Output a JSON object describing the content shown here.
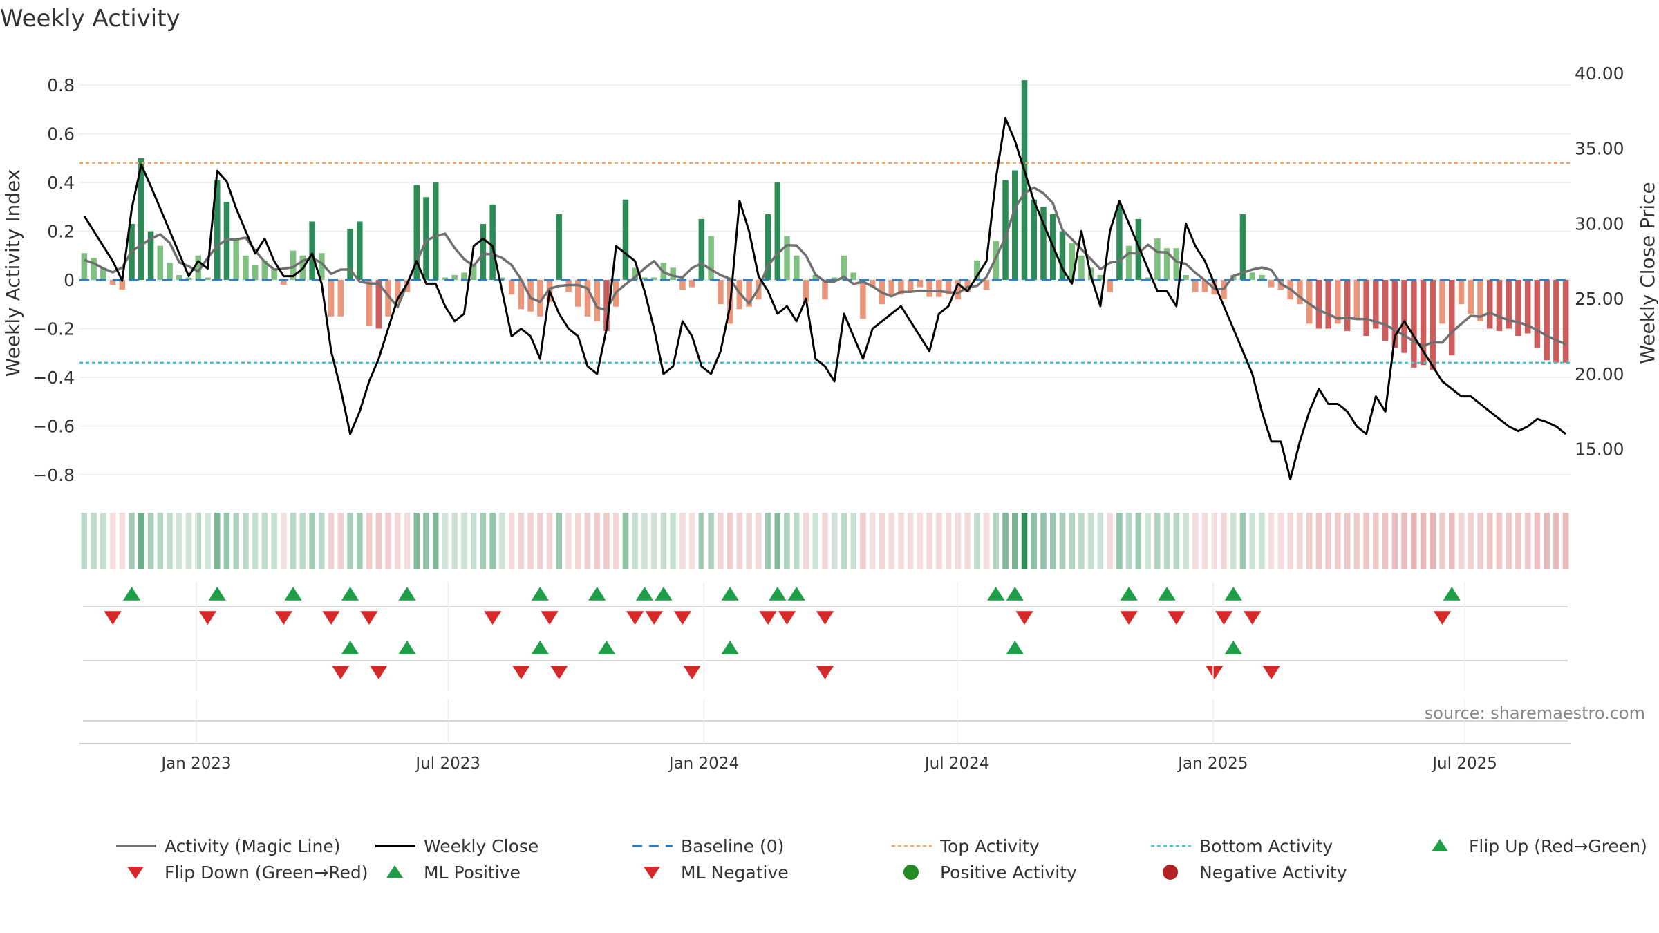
{
  "chart_data": {
    "type": "bar",
    "title": "Weekly Activity",
    "ylabel": "Weekly Activity Index",
    "y2label": "Weekly Close Price",
    "source": "source: sharemaestro.com",
    "ylim": [
      -0.88,
      0.88
    ],
    "y2lim": [
      12.0,
      40.5
    ],
    "yticks": [
      0.8,
      0.6,
      0.4,
      0.2,
      0,
      -0.2,
      -0.4,
      -0.6,
      -0.8
    ],
    "ytick_labels": [
      "0.8",
      "0.6",
      "0.4",
      "0.2",
      "0",
      "−0.2",
      "−0.4",
      "−0.6",
      "−0.8"
    ],
    "y2ticks": [
      40,
      35,
      30,
      25,
      20,
      15
    ],
    "y2tick_labels": [
      "40.00",
      "35.00",
      "30.00",
      "25.00",
      "20.00",
      "15.00"
    ],
    "top_activity": 0.48,
    "bottom_activity": -0.34,
    "x_start": "2022-10-09",
    "x_end": "2025-09-15",
    "week_count": 157,
    "xticks": [
      {
        "label": "Jan 2023",
        "date": "2023-01-01"
      },
      {
        "label": "Jul 2023",
        "date": "2023-07-01"
      },
      {
        "label": "Jan 2024",
        "date": "2024-01-01"
      },
      {
        "label": "Jul 2024",
        "date": "2024-07-01"
      },
      {
        "label": "Jan 2025",
        "date": "2025-01-01"
      },
      {
        "label": "Jul 2025",
        "date": "2025-07-01"
      }
    ],
    "bar_anchors": [
      [
        0,
        0.11
      ],
      [
        1,
        0.09
      ],
      [
        2,
        0.05
      ],
      [
        3,
        -0.02
      ],
      [
        4,
        -0.04
      ],
      [
        5,
        0.23
      ],
      [
        6,
        0.5
      ],
      [
        7,
        0.2
      ],
      [
        8,
        0.14
      ],
      [
        9,
        0.07
      ],
      [
        10,
        0.02
      ],
      [
        11,
        0.01
      ],
      [
        12,
        0.1
      ],
      [
        13,
        0.01
      ],
      [
        14,
        0.41
      ],
      [
        15,
        0.32
      ],
      [
        16,
        0.17
      ],
      [
        17,
        0.1
      ],
      [
        18,
        0.06
      ],
      [
        19,
        0.08
      ],
      [
        20,
        0.04
      ],
      [
        21,
        -0.02
      ],
      [
        22,
        0.12
      ],
      [
        23,
        0.1
      ],
      [
        24,
        0.24
      ],
      [
        25,
        0.11
      ],
      [
        26,
        -0.15
      ],
      [
        27,
        -0.15
      ],
      [
        28,
        0.21
      ],
      [
        29,
        0.24
      ],
      [
        30,
        -0.19
      ],
      [
        31,
        -0.2
      ],
      [
        32,
        -0.15
      ],
      [
        33,
        -0.09
      ],
      [
        34,
        -0.05
      ],
      [
        35,
        0.39
      ],
      [
        36,
        0.34
      ],
      [
        37,
        0.4
      ],
      [
        38,
        0.01
      ],
      [
        39,
        0.02
      ],
      [
        40,
        0.03
      ],
      [
        41,
        0.06
      ],
      [
        42,
        0.23
      ],
      [
        43,
        0.31
      ],
      [
        44,
        0.01
      ],
      [
        45,
        -0.06
      ],
      [
        46,
        -0.12
      ],
      [
        47,
        -0.13
      ],
      [
        48,
        -0.15
      ],
      [
        49,
        -0.09
      ],
      [
        50,
        0.27
      ],
      [
        51,
        -0.05
      ],
      [
        52,
        -0.11
      ],
      [
        53,
        -0.15
      ],
      [
        54,
        -0.17
      ],
      [
        55,
        -0.21
      ],
      [
        56,
        -0.11
      ],
      [
        57,
        0.33
      ],
      [
        58,
        0.05
      ],
      [
        59,
        0.01
      ],
      [
        60,
        0.01
      ],
      [
        61,
        0.07
      ],
      [
        62,
        0.05
      ],
      [
        63,
        -0.04
      ],
      [
        64,
        -0.03
      ],
      [
        65,
        0.25
      ],
      [
        66,
        0.18
      ],
      [
        67,
        -0.1
      ],
      [
        68,
        -0.18
      ],
      [
        69,
        -0.12
      ],
      [
        70,
        -0.11
      ],
      [
        71,
        -0.08
      ],
      [
        72,
        0.27
      ],
      [
        73,
        0.4
      ],
      [
        74,
        0.18
      ],
      [
        75,
        0.1
      ],
      [
        76,
        -0.09
      ],
      [
        77,
        0.02
      ],
      [
        78,
        -0.08
      ],
      [
        79,
        0.01
      ],
      [
        80,
        0.1
      ],
      [
        81,
        0.03
      ],
      [
        82,
        -0.16
      ],
      [
        83,
        -0.03
      ],
      [
        84,
        -0.1
      ],
      [
        85,
        -0.06
      ],
      [
        86,
        -0.06
      ],
      [
        87,
        -0.05
      ],
      [
        88,
        -0.03
      ],
      [
        89,
        -0.07
      ],
      [
        90,
        -0.07
      ],
      [
        91,
        -0.06
      ],
      [
        92,
        -0.08
      ],
      [
        93,
        -0.05
      ],
      [
        94,
        0.08
      ],
      [
        95,
        -0.04
      ],
      [
        96,
        0.16
      ],
      [
        97,
        0.41
      ],
      [
        98,
        0.45
      ],
      [
        99,
        0.82
      ],
      [
        100,
        0.33
      ],
      [
        101,
        0.3
      ],
      [
        102,
        0.27
      ],
      [
        103,
        0.2
      ],
      [
        104,
        0.15
      ],
      [
        105,
        0.1
      ],
      [
        106,
        0.05
      ],
      [
        107,
        0.02
      ],
      [
        108,
        -0.05
      ],
      [
        109,
        0.31
      ],
      [
        110,
        0.14
      ],
      [
        111,
        0.25
      ],
      [
        112,
        0.01
      ],
      [
        113,
        0.17
      ],
      [
        114,
        0.13
      ],
      [
        115,
        0.13
      ],
      [
        116,
        0.02
      ],
      [
        117,
        -0.05
      ],
      [
        118,
        -0.05
      ],
      [
        119,
        -0.06
      ],
      [
        120,
        -0.08
      ],
      [
        121,
        0.02
      ],
      [
        122,
        0.27
      ],
      [
        123,
        0.03
      ],
      [
        124,
        0.02
      ],
      [
        125,
        -0.03
      ],
      [
        126,
        -0.04
      ],
      [
        127,
        -0.08
      ],
      [
        128,
        -0.1
      ],
      [
        129,
        -0.18
      ],
      [
        130,
        -0.2
      ],
      [
        131,
        -0.2
      ],
      [
        132,
        -0.18
      ],
      [
        133,
        -0.21
      ],
      [
        134,
        -0.16
      ],
      [
        135,
        -0.23
      ],
      [
        136,
        -0.2
      ],
      [
        137,
        -0.25
      ],
      [
        138,
        -0.28
      ],
      [
        139,
        -0.3
      ],
      [
        140,
        -0.36
      ],
      [
        141,
        -0.35
      ],
      [
        142,
        -0.37
      ],
      [
        143,
        -0.18
      ],
      [
        144,
        -0.31
      ],
      [
        145,
        -0.1
      ],
      [
        146,
        -0.14
      ],
      [
        147,
        -0.17
      ],
      [
        148,
        -0.2
      ],
      [
        149,
        -0.21
      ],
      [
        150,
        -0.2
      ],
      [
        151,
        -0.23
      ],
      [
        152,
        -0.22
      ],
      [
        153,
        -0.28
      ],
      [
        154,
        -0.33
      ],
      [
        155,
        -0.34
      ],
      [
        156,
        -0.34
      ]
    ],
    "close_anchors": [
      [
        0,
        30.5
      ],
      [
        1,
        29.5
      ],
      [
        2,
        28.5
      ],
      [
        3,
        27.5
      ],
      [
        4,
        26.2
      ],
      [
        5,
        31.0
      ],
      [
        6,
        33.9
      ],
      [
        7,
        32.5
      ],
      [
        8,
        31.0
      ],
      [
        9,
        29.5
      ],
      [
        10,
        28.0
      ],
      [
        11,
        26.5
      ],
      [
        12,
        27.5
      ],
      [
        13,
        27.0
      ],
      [
        14,
        33.5
      ],
      [
        15,
        32.8
      ],
      [
        16,
        31.0
      ],
      [
        17,
        29.5
      ],
      [
        18,
        28.0
      ],
      [
        19,
        29.0
      ],
      [
        20,
        27.5
      ],
      [
        21,
        26.5
      ],
      [
        22,
        26.5
      ],
      [
        23,
        27.0
      ],
      [
        24,
        28.0
      ],
      [
        25,
        26.0
      ],
      [
        26,
        21.5
      ],
      [
        27,
        19.0
      ],
      [
        28,
        16.0
      ],
      [
        29,
        17.5
      ],
      [
        30,
        19.5
      ],
      [
        31,
        21.0
      ],
      [
        32,
        23.0
      ],
      [
        33,
        25.0
      ],
      [
        34,
        26.0
      ],
      [
        35,
        27.5
      ],
      [
        36,
        26.0
      ],
      [
        37,
        26.0
      ],
      [
        38,
        24.5
      ],
      [
        39,
        23.5
      ],
      [
        40,
        24.0
      ],
      [
        41,
        28.5
      ],
      [
        42,
        29.0
      ],
      [
        43,
        28.5
      ],
      [
        44,
        25.5
      ],
      [
        45,
        22.5
      ],
      [
        46,
        23.0
      ],
      [
        47,
        22.5
      ],
      [
        48,
        21.0
      ],
      [
        49,
        25.5
      ],
      [
        50,
        24.0
      ],
      [
        51,
        23.0
      ],
      [
        52,
        22.5
      ],
      [
        53,
        20.5
      ],
      [
        54,
        20.0
      ],
      [
        55,
        23.0
      ],
      [
        56,
        28.5
      ],
      [
        57,
        28.0
      ],
      [
        58,
        27.5
      ],
      [
        59,
        25.5
      ],
      [
        60,
        23.0
      ],
      [
        61,
        20.0
      ],
      [
        62,
        20.5
      ],
      [
        63,
        23.5
      ],
      [
        64,
        22.5
      ],
      [
        65,
        20.5
      ],
      [
        66,
        20.0
      ],
      [
        67,
        21.5
      ],
      [
        68,
        24.5
      ],
      [
        69,
        31.5
      ],
      [
        70,
        29.5
      ],
      [
        71,
        26.5
      ],
      [
        72,
        25.5
      ],
      [
        73,
        24.0
      ],
      [
        74,
        24.5
      ],
      [
        75,
        23.5
      ],
      [
        76,
        25.0
      ],
      [
        77,
        21.0
      ],
      [
        78,
        20.5
      ],
      [
        79,
        19.5
      ],
      [
        80,
        24.0
      ],
      [
        81,
        22.5
      ],
      [
        82,
        21.0
      ],
      [
        83,
        23.0
      ],
      [
        84,
        23.5
      ],
      [
        85,
        24.0
      ],
      [
        86,
        24.5
      ],
      [
        87,
        23.5
      ],
      [
        88,
        22.5
      ],
      [
        89,
        21.5
      ],
      [
        90,
        24.0
      ],
      [
        91,
        24.5
      ],
      [
        92,
        26.0
      ],
      [
        93,
        25.5
      ],
      [
        94,
        26.5
      ],
      [
        95,
        27.5
      ],
      [
        96,
        33.0
      ],
      [
        97,
        37.0
      ],
      [
        98,
        35.5
      ],
      [
        99,
        33.5
      ],
      [
        100,
        31.5
      ],
      [
        101,
        30.0
      ],
      [
        102,
        28.5
      ],
      [
        103,
        27.0
      ],
      [
        104,
        26.0
      ],
      [
        105,
        29.5
      ],
      [
        106,
        26.5
      ],
      [
        107,
        24.5
      ],
      [
        108,
        29.5
      ],
      [
        109,
        31.5
      ],
      [
        110,
        30.0
      ],
      [
        111,
        28.5
      ],
      [
        112,
        27.0
      ],
      [
        113,
        25.5
      ],
      [
        114,
        25.5
      ],
      [
        115,
        24.5
      ],
      [
        116,
        30.0
      ],
      [
        117,
        28.5
      ],
      [
        118,
        27.5
      ],
      [
        119,
        26.0
      ],
      [
        120,
        24.5
      ],
      [
        121,
        23.0
      ],
      [
        122,
        21.5
      ],
      [
        123,
        20.0
      ],
      [
        124,
        17.5
      ],
      [
        125,
        15.5
      ],
      [
        126,
        15.5
      ],
      [
        127,
        13.0
      ],
      [
        128,
        15.5
      ],
      [
        129,
        17.5
      ],
      [
        130,
        19.0
      ],
      [
        131,
        18.0
      ],
      [
        132,
        18.0
      ],
      [
        133,
        17.5
      ],
      [
        134,
        16.5
      ],
      [
        135,
        16.0
      ],
      [
        136,
        18.5
      ],
      [
        137,
        17.5
      ],
      [
        138,
        22.5
      ],
      [
        139,
        23.5
      ],
      [
        140,
        22.5
      ],
      [
        141,
        21.5
      ],
      [
        142,
        20.5
      ],
      [
        143,
        19.5
      ],
      [
        144,
        19.0
      ],
      [
        145,
        18.5
      ],
      [
        146,
        18.5
      ],
      [
        147,
        18.0
      ],
      [
        148,
        17.5
      ],
      [
        149,
        17.0
      ],
      [
        150,
        16.5
      ],
      [
        151,
        16.2
      ],
      [
        152,
        16.5
      ],
      [
        153,
        17.0
      ],
      [
        154,
        16.8
      ],
      [
        155,
        16.5
      ],
      [
        156,
        16.0
      ]
    ],
    "flip_up_row1": [
      5,
      14,
      22,
      28,
      34,
      48,
      54,
      59,
      61,
      68,
      73,
      75,
      96,
      98,
      110,
      114,
      121,
      144
    ],
    "flip_down_row1": [
      3,
      13,
      21,
      26,
      30,
      43,
      49,
      58,
      60,
      63,
      72,
      74,
      78,
      99,
      110,
      115,
      120,
      123,
      143
    ],
    "ml_positive_row2": [
      28,
      34,
      48,
      55,
      68,
      98,
      121
    ],
    "ml_negative_row2": [
      27,
      31,
      46,
      50,
      64,
      78,
      119,
      125
    ],
    "legend": [
      {
        "name": "Activity (Magic Line)",
        "kind": "line",
        "color": "#707070"
      },
      {
        "name": "Weekly Close",
        "kind": "line",
        "color": "#000000"
      },
      {
        "name": "Baseline (0)",
        "kind": "dash",
        "color": "#2f7fc1"
      },
      {
        "name": "Top Activity",
        "kind": "dot",
        "color": "#f2a365"
      },
      {
        "name": "Bottom Activity",
        "kind": "dot",
        "color": "#3cc6d6"
      },
      {
        "name": "Flip Up (Red→Green)",
        "kind": "tri-up",
        "color": "#1f9e4a"
      },
      {
        "name": "Flip Down (Green→Red)",
        "kind": "tri-down",
        "color": "#d62a2a"
      },
      {
        "name": "ML Positive",
        "kind": "tri-up",
        "color": "#1f9e4a"
      },
      {
        "name": "ML Negative",
        "kind": "tri-down",
        "color": "#d62a2a"
      },
      {
        "name": "Positive Activity",
        "kind": "circle",
        "color": "#228b22"
      },
      {
        "name": "Negative Activity",
        "kind": "circle",
        "color": "#b22222"
      }
    ],
    "colors": {
      "pos_strong": "#2e8b57",
      "pos_light": "#7fbf7f",
      "neg_strong": "#cd5c5c",
      "neg_light": "#e9967a",
      "magic_line": "#707070",
      "close": "#000000",
      "grid": "#ebebeb"
    }
  }
}
